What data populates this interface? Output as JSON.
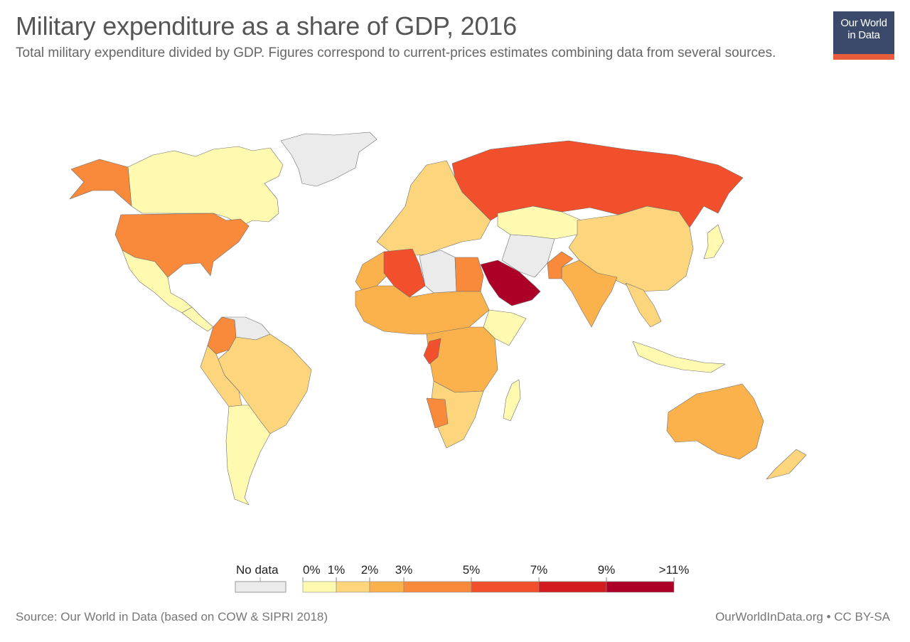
{
  "header": {
    "title": "Military expenditure as a share of GDP, 2016",
    "subtitle": "Total military expenditure divided by GDP. Figures correspond to current-prices estimates combining data from several sources."
  },
  "logo": {
    "line1": "Our World",
    "line2": "in Data",
    "color": "#3b4a6b",
    "accent": "#e95d3d"
  },
  "legend": {
    "no_data_label": "No data",
    "no_data_color": "#ebebeb",
    "bins": [
      {
        "from": "0%",
        "to": "1%",
        "color": "#fffab0"
      },
      {
        "from": "1%",
        "to": "2%",
        "color": "#fdd57c"
      },
      {
        "from": "2%",
        "to": "3%",
        "color": "#fcb24c"
      },
      {
        "from": "3%",
        "to": "5%",
        "color": "#f98a3c"
      },
      {
        "from": "5%",
        "to": "7%",
        "color": "#f24f2c"
      },
      {
        "from": "7%",
        "to": "9%",
        "color": "#d31c20"
      },
      {
        "from": "9%",
        "to": ">11%",
        "color": "#ad0028"
      }
    ],
    "tick_labels": [
      "0%",
      "1%",
      "2%",
      "3%",
      "5%",
      "7%",
      "9%",
      ">11%"
    ]
  },
  "map_regions": [
    {
      "name": "Canada",
      "bin": "0-1%",
      "color": "#fffab0"
    },
    {
      "name": "United States",
      "bin": "3-5%",
      "color": "#f98a3c"
    },
    {
      "name": "Mexico",
      "bin": "0-1%",
      "color": "#fffab0"
    },
    {
      "name": "Alaska",
      "bin": "3-5%",
      "color": "#f98a3c"
    },
    {
      "name": "Greenland",
      "bin": "No data",
      "color": "#ebebeb"
    },
    {
      "name": "Colombia",
      "bin": "3-5%",
      "color": "#f98a3c"
    },
    {
      "name": "Venezuela",
      "bin": "No data",
      "color": "#ebebeb"
    },
    {
      "name": "Brazil",
      "bin": "1-2%",
      "color": "#fdd57c"
    },
    {
      "name": "Argentina",
      "bin": "0-1%",
      "color": "#fffab0"
    },
    {
      "name": "Russia",
      "bin": "5-7%",
      "color": "#f24f2c"
    },
    {
      "name": "Kazakhstan",
      "bin": "0-1%",
      "color": "#fffab0"
    },
    {
      "name": "China",
      "bin": "1-2%",
      "color": "#fdd57c"
    },
    {
      "name": "India",
      "bin": "2-3%",
      "color": "#fcb24c"
    },
    {
      "name": "Pakistan",
      "bin": "3-5%",
      "color": "#f98a3c"
    },
    {
      "name": "Saudi Arabia",
      "bin": "9->11%",
      "color": "#ad0028"
    },
    {
      "name": "Algeria",
      "bin": "5-7%",
      "color": "#f24f2c"
    },
    {
      "name": "Libya",
      "bin": "No data",
      "color": "#ebebeb"
    },
    {
      "name": "Congo",
      "bin": "5-7%",
      "color": "#f24f2c"
    },
    {
      "name": "Namibia",
      "bin": "3-5%",
      "color": "#f98a3c"
    },
    {
      "name": "South Africa",
      "bin": "1-2%",
      "color": "#fdd57c"
    },
    {
      "name": "Australia",
      "bin": "2-3%",
      "color": "#fcb24c"
    },
    {
      "name": "New Zealand",
      "bin": "1-2%",
      "color": "#fdd57c"
    },
    {
      "name": "Europe",
      "bin": "1-2%",
      "color": "#fdd57c"
    }
  ],
  "footer": {
    "source": "Source: Our World in Data (based on COW & SIPRI 2018)",
    "credit": "OurWorldInData.org • CC BY-SA"
  }
}
